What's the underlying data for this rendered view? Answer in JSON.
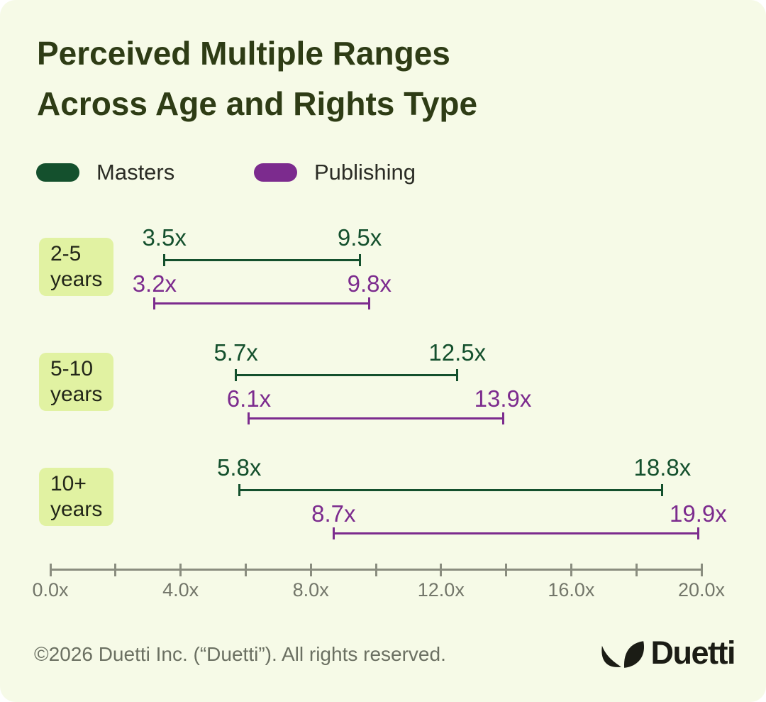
{
  "title": {
    "line1": "Perceived Multiple Ranges",
    "line2": "Across Age and Rights Type"
  },
  "legend": {
    "items": [
      {
        "name": "Masters",
        "color": "#14502d"
      },
      {
        "name": "Publishing",
        "color": "#7c2b8e"
      }
    ]
  },
  "chart_data": {
    "type": "bar",
    "subtype": "horizontal-range-dumbbell",
    "title": "Perceived Multiple Ranges Across Age and Rights Type",
    "categories": [
      "2-5 years",
      "5-10 years",
      "10+ years"
    ],
    "category_lines": [
      [
        "2-5",
        "years"
      ],
      [
        "5-10",
        "years"
      ],
      [
        "10+",
        "years"
      ]
    ],
    "series": [
      {
        "name": "Masters",
        "color": "#14502d",
        "ranges": [
          [
            3.5,
            9.5
          ],
          [
            5.7,
            12.5
          ],
          [
            5.8,
            18.8
          ]
        ]
      },
      {
        "name": "Publishing",
        "color": "#7c2b8e",
        "ranges": [
          [
            3.2,
            9.8
          ],
          [
            6.1,
            13.9
          ],
          [
            8.7,
            19.9
          ]
        ]
      }
    ],
    "value_suffix": "x",
    "axis": {
      "min": 0,
      "max": 20,
      "tick_step": 2,
      "label_values": [
        0,
        4,
        8,
        12,
        16,
        20
      ],
      "tick_labels": [
        "0.0x",
        "4.0x",
        "8.0x",
        "12.0x",
        "16.0x",
        "20.0x"
      ]
    },
    "legend_position": "top",
    "grid": false
  },
  "footer": {
    "copyright": "©2026 Duetti Inc. (“Duetti”). All rights reserved.",
    "brand": "Duetti"
  },
  "colors": {
    "background": "#f6fae7",
    "chip_bg": "#e1f2a2",
    "title_text": "#2e3c15",
    "axis": "#8a8d7f",
    "axis_label": "#73766a",
    "muted_text": "#6b7062",
    "logo": "#1b1c15"
  }
}
